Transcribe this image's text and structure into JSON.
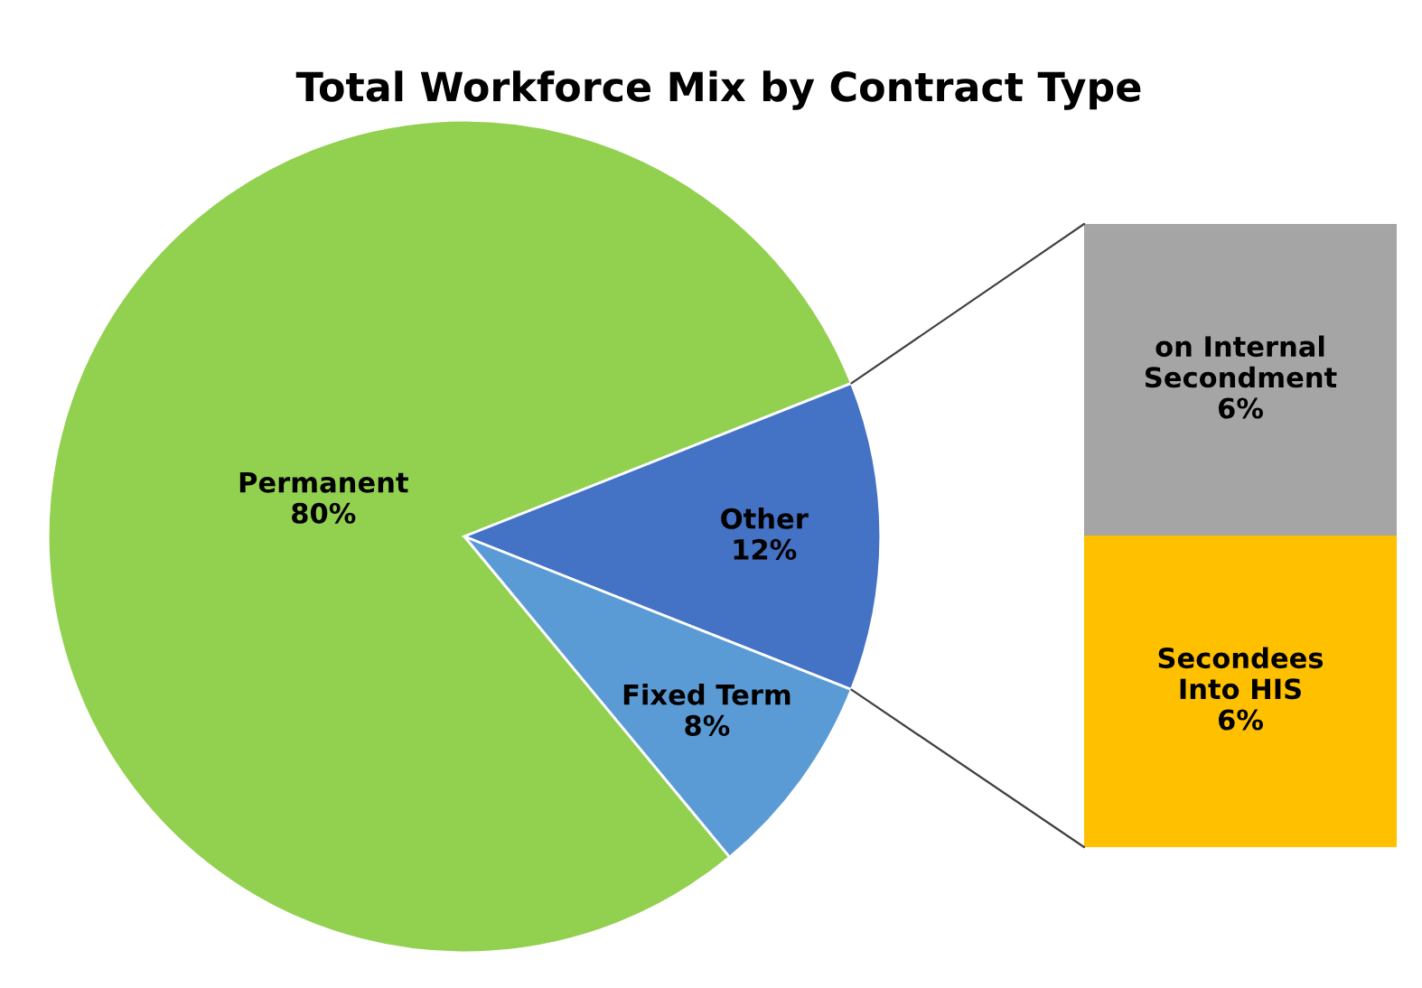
{
  "chart_data": [
    {
      "type": "pie",
      "title": "Total Workforce Mix by Contract Type",
      "categories": [
        "Permanent",
        "Other",
        "Fixed Term"
      ],
      "values": [
        80,
        12,
        8
      ],
      "colors": [
        "#92d050",
        "#4472c4",
        "#5b9bd5"
      ],
      "value_labels": [
        "80%",
        "12%",
        "8%"
      ]
    },
    {
      "type": "bar",
      "stacked": true,
      "tick_labels": false,
      "categories": [
        null
      ],
      "series": [
        {
          "name": "Secondees Into HIS",
          "color": "#ffc000",
          "values": [
            6
          ],
          "value_labels": [
            "6%"
          ]
        },
        {
          "name": "on Internal Secondment",
          "color": "#a5a5a5",
          "values": [
            6
          ],
          "value_labels": [
            "6%"
          ]
        }
      ]
    }
  ]
}
